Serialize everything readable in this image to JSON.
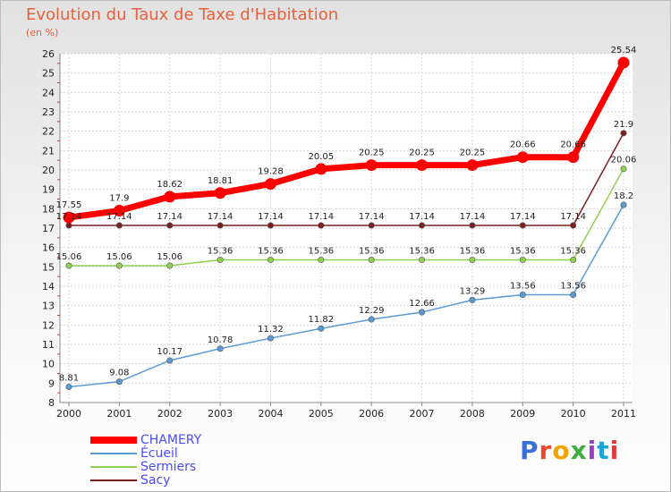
{
  "chart_data": {
    "type": "line",
    "title": "Evolution du Taux de Taxe d'Habitation",
    "subtitle": "(en %)",
    "x": [
      "2000",
      "2001",
      "2002",
      "2003",
      "2004",
      "2005",
      "2006",
      "2007",
      "2008",
      "2009",
      "2010",
      "2011"
    ],
    "ylim": [
      8,
      26
    ],
    "yticks": [
      8,
      9,
      10,
      11,
      12,
      13,
      14,
      15,
      16,
      17,
      18,
      19,
      20,
      21,
      22,
      23,
      24,
      25,
      26
    ],
    "grid": true,
    "legend_position": "bottom-left",
    "series": [
      {
        "name": "CHAMERY",
        "color": "#ff0000",
        "values": [
          17.55,
          17.9,
          18.62,
          18.81,
          19.28,
          20.05,
          20.25,
          20.25,
          20.25,
          20.66,
          20.66,
          25.54
        ],
        "labels": [
          "17.55",
          "17.9",
          "18.62",
          "18.81",
          "19.28",
          "20.05",
          "20.25",
          "20.25",
          "20.25",
          "20.66",
          "20.66",
          "25.54"
        ]
      },
      {
        "name": "Écueil",
        "color": "#5b9bd5",
        "values": [
          8.81,
          9.08,
          10.17,
          10.78,
          11.32,
          11.82,
          12.29,
          12.66,
          13.29,
          13.56,
          13.56,
          18.2
        ],
        "labels": [
          "8.81",
          "9.08",
          "10.17",
          "10.78",
          "11.32",
          "11.82",
          "12.29",
          "12.66",
          "13.29",
          "13.56",
          "13.56",
          "18.2"
        ]
      },
      {
        "name": "Sermiers",
        "color": "#8fd14f",
        "values": [
          15.06,
          15.06,
          15.06,
          15.36,
          15.36,
          15.36,
          15.36,
          15.36,
          15.36,
          15.36,
          15.36,
          20.06
        ],
        "labels": [
          "15.06",
          "15.06",
          "15.06",
          "15.36",
          "15.36",
          "15.36",
          "15.36",
          "15.36",
          "15.36",
          "15.36",
          "15.36",
          "20.06"
        ]
      },
      {
        "name": "Sacy",
        "color": "#7b2020",
        "values": [
          17.14,
          17.14,
          17.14,
          17.14,
          17.14,
          17.14,
          17.14,
          17.14,
          17.14,
          17.14,
          17.14,
          21.9
        ],
        "labels": [
          "17.14",
          "17.14",
          "17.14",
          "17.14",
          "17.14",
          "17.14",
          "17.14",
          "17.14",
          "17.14",
          "17.14",
          "17.14",
          "21.9"
        ]
      }
    ]
  },
  "logo": {
    "text": "Proxiti",
    "colors": [
      "#3a6fd8",
      "#e84a2a",
      "#f2a400",
      "#3fae3f",
      "#9c3fc8",
      "#1aa3d9",
      "#e03a3a"
    ]
  }
}
